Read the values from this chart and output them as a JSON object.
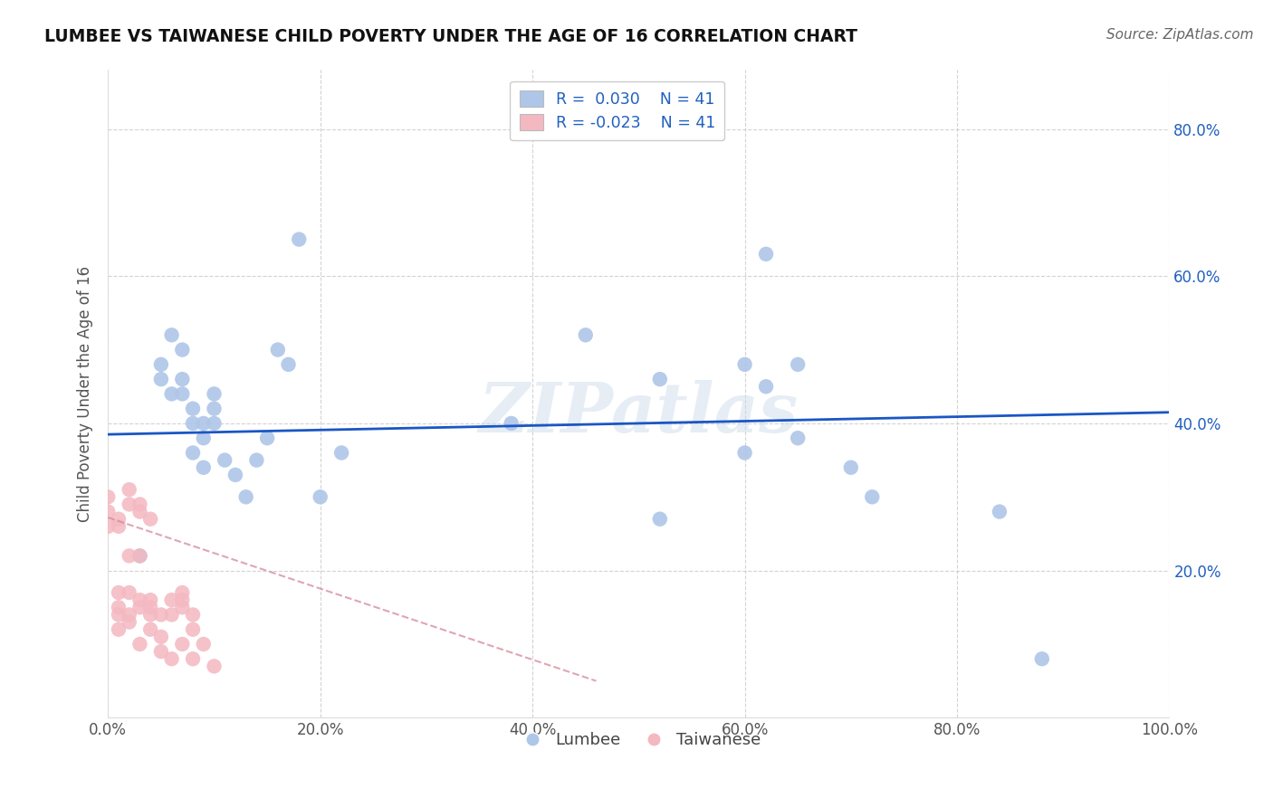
{
  "title": "LUMBEE VS TAIWANESE CHILD POVERTY UNDER THE AGE OF 16 CORRELATION CHART",
  "source": "Source: ZipAtlas.com",
  "ylabel": "Child Poverty Under the Age of 16",
  "xlim": [
    0.0,
    1.0
  ],
  "ylim": [
    0.0,
    0.88
  ],
  "xticks": [
    0.0,
    0.2,
    0.4,
    0.6,
    0.8,
    1.0
  ],
  "yticks": [
    0.0,
    0.2,
    0.4,
    0.6,
    0.8
  ],
  "xtick_labels": [
    "0.0%",
    "20.0%",
    "40.0%",
    "60.0%",
    "80.0%",
    "100.0%"
  ],
  "ytick_labels_right": [
    "20.0%",
    "40.0%",
    "60.0%",
    "80.0%"
  ],
  "lumbee_R": 0.03,
  "lumbee_N": 41,
  "taiwanese_R": -0.023,
  "taiwanese_N": 41,
  "lumbee_color": "#aec6e8",
  "taiwanese_color": "#f4b8c1",
  "lumbee_line_color": "#1a56c4",
  "taiwanese_line_color": "#d4899a",
  "background_color": "#ffffff",
  "grid_color": "#c8c8c8",
  "watermark": "ZIPatlas",
  "lumbee_x": [
    0.03,
    0.05,
    0.05,
    0.06,
    0.06,
    0.07,
    0.07,
    0.07,
    0.08,
    0.08,
    0.08,
    0.09,
    0.09,
    0.09,
    0.1,
    0.1,
    0.1,
    0.11,
    0.12,
    0.13,
    0.14,
    0.15,
    0.16,
    0.17,
    0.2,
    0.22,
    0.38,
    0.45,
    0.52,
    0.6,
    0.62,
    0.65,
    0.7,
    0.72,
    0.84,
    0.88,
    0.52,
    0.6,
    0.62,
    0.65,
    0.18
  ],
  "lumbee_y": [
    0.22,
    0.46,
    0.48,
    0.44,
    0.52,
    0.44,
    0.5,
    0.46,
    0.42,
    0.4,
    0.36,
    0.4,
    0.38,
    0.34,
    0.44,
    0.42,
    0.4,
    0.35,
    0.33,
    0.3,
    0.35,
    0.38,
    0.5,
    0.48,
    0.3,
    0.36,
    0.4,
    0.52,
    0.46,
    0.48,
    0.45,
    0.38,
    0.34,
    0.3,
    0.28,
    0.08,
    0.27,
    0.36,
    0.63,
    0.48,
    0.65
  ],
  "taiwanese_x": [
    0.0,
    0.0,
    0.0,
    0.01,
    0.01,
    0.01,
    0.01,
    0.01,
    0.01,
    0.02,
    0.02,
    0.02,
    0.02,
    0.02,
    0.02,
    0.03,
    0.03,
    0.03,
    0.03,
    0.03,
    0.03,
    0.04,
    0.04,
    0.04,
    0.04,
    0.04,
    0.05,
    0.05,
    0.05,
    0.06,
    0.06,
    0.06,
    0.07,
    0.07,
    0.07,
    0.07,
    0.08,
    0.08,
    0.08,
    0.09,
    0.1
  ],
  "taiwanese_y": [
    0.26,
    0.28,
    0.3,
    0.26,
    0.27,
    0.17,
    0.15,
    0.14,
    0.12,
    0.31,
    0.29,
    0.22,
    0.17,
    0.14,
    0.13,
    0.29,
    0.28,
    0.22,
    0.16,
    0.15,
    0.1,
    0.27,
    0.16,
    0.15,
    0.14,
    0.12,
    0.14,
    0.11,
    0.09,
    0.16,
    0.14,
    0.08,
    0.17,
    0.16,
    0.15,
    0.1,
    0.14,
    0.12,
    0.08,
    0.1,
    0.07
  ]
}
